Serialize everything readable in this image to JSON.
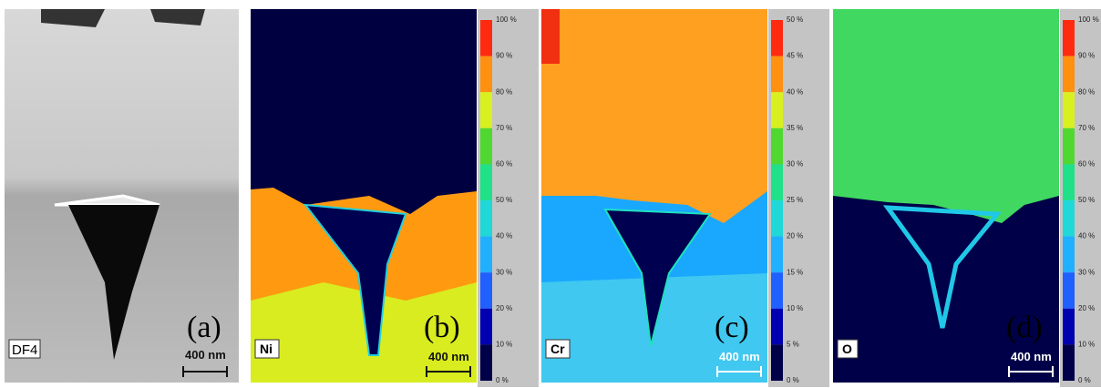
{
  "panels": [
    {
      "label": "(a)",
      "tag": "DF4",
      "scale_bar": "400 nm"
    },
    {
      "label": "(b)",
      "tag": "Ni",
      "scale_bar": "400 nm",
      "colorbar_ticks": [
        "100 %",
        "90 %",
        "80 %",
        "70 %",
        "60 %",
        "50 %",
        "40 %",
        "30 %",
        "20 %",
        "10 %",
        "0 %"
      ]
    },
    {
      "label": "(c)",
      "tag": "Cr",
      "scale_bar": "400 nm",
      "colorbar_ticks": [
        "50 %",
        "45 %",
        "40 %",
        "35 %",
        "30 %",
        "25 %",
        "20 %",
        "15 %",
        "10 %",
        "5 %",
        "0 %"
      ]
    },
    {
      "label": "(d)",
      "tag": "O",
      "scale_bar": "400 nm",
      "colorbar_ticks": [
        "100 %",
        "90 %",
        "80 %",
        "70 %",
        "60 %",
        "50 %",
        "40 %",
        "30 %",
        "20 %",
        "10 %",
        "0 %"
      ]
    }
  ]
}
